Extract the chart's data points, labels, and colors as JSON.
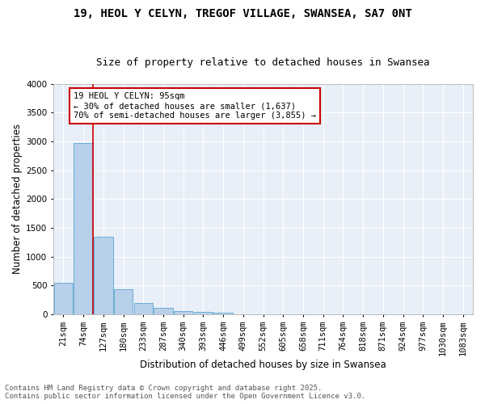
{
  "title1": "19, HEOL Y CELYN, TREGOF VILLAGE, SWANSEA, SA7 0NT",
  "title2": "Size of property relative to detached houses in Swansea",
  "xlabel": "Distribution of detached houses by size in Swansea",
  "ylabel": "Number of detached properties",
  "categories": [
    "21sqm",
    "74sqm",
    "127sqm",
    "180sqm",
    "233sqm",
    "287sqm",
    "340sqm",
    "393sqm",
    "446sqm",
    "499sqm",
    "552sqm",
    "605sqm",
    "658sqm",
    "711sqm",
    "764sqm",
    "818sqm",
    "871sqm",
    "924sqm",
    "977sqm",
    "1030sqm",
    "1083sqm"
  ],
  "values": [
    540,
    2970,
    1340,
    430,
    190,
    110,
    60,
    40,
    30,
    0,
    0,
    0,
    0,
    0,
    0,
    0,
    0,
    0,
    0,
    0,
    0
  ],
  "bar_color": "#b8d0ea",
  "bar_edge_color": "#6aaed6",
  "background_color": "#e8eff8",
  "grid_color": "#ffffff",
  "vline_x": 1.5,
  "vline_color": "#cc0000",
  "annotation_text": "19 HEOL Y CELYN: 95sqm\n← 30% of detached houses are smaller (1,637)\n70% of semi-detached houses are larger (3,855) →",
  "annotation_box_color": "#cc0000",
  "ylim": [
    0,
    4000
  ],
  "yticks": [
    0,
    500,
    1000,
    1500,
    2000,
    2500,
    3000,
    3500,
    4000
  ],
  "footer1": "Contains HM Land Registry data © Crown copyright and database right 2025.",
  "footer2": "Contains public sector information licensed under the Open Government Licence v3.0.",
  "title_fontsize": 10,
  "subtitle_fontsize": 9,
  "axis_label_fontsize": 8.5,
  "tick_fontsize": 7.5,
  "annotation_fontsize": 7.5,
  "footer_fontsize": 6.5
}
